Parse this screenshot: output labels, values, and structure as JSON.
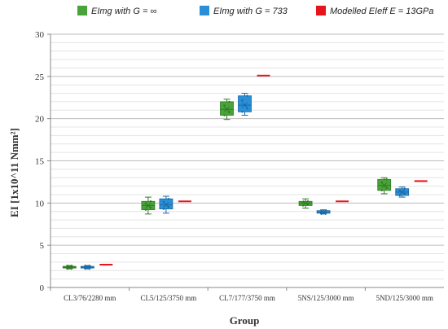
{
  "chart_data": {
    "type": "box",
    "xlabel": "Group",
    "ylabel": "EI [1x10^11 Nmm²]",
    "ylim": [
      0,
      30
    ],
    "yticks": [
      0,
      5,
      10,
      15,
      20,
      25,
      30
    ],
    "grid": "horizontal, every 1 unit",
    "legend_position": "top",
    "categories": [
      "CL3/76/2280 mm",
      "CL5/125/3750 mm",
      "CL7/177/3750 mm",
      "5NS/125/3000 mm",
      "5ND/125/3000 mm"
    ],
    "series": [
      {
        "name": "EImg with G = ∞",
        "color": "#4aa33a",
        "kind": "box",
        "boxes": [
          {
            "min": 2.2,
            "q1": 2.3,
            "median": 2.4,
            "q3": 2.5,
            "max": 2.6
          },
          {
            "min": 8.7,
            "q1": 9.2,
            "median": 9.7,
            "q3": 10.2,
            "max": 10.7
          },
          {
            "min": 19.9,
            "q1": 20.4,
            "median": 21.1,
            "q3": 22.0,
            "max": 22.3
          },
          {
            "min": 9.4,
            "q1": 9.7,
            "median": 10.0,
            "q3": 10.2,
            "max": 10.5
          },
          {
            "min": 11.1,
            "q1": 11.5,
            "median": 12.1,
            "q3": 12.8,
            "max": 13.0
          }
        ]
      },
      {
        "name": "EImg with G = 733",
        "color": "#2a8fd6",
        "kind": "box",
        "boxes": [
          {
            "min": 2.2,
            "q1": 2.3,
            "median": 2.4,
            "q3": 2.5,
            "max": 2.6
          },
          {
            "min": 8.8,
            "q1": 9.3,
            "median": 9.8,
            "q3": 10.5,
            "max": 10.8
          },
          {
            "min": 20.4,
            "q1": 20.8,
            "median": 21.6,
            "q3": 22.7,
            "max": 23.0
          },
          {
            "min": 8.7,
            "q1": 8.8,
            "median": 8.9,
            "q3": 9.1,
            "max": 9.2
          },
          {
            "min": 10.7,
            "q1": 10.9,
            "median": 11.3,
            "q3": 11.7,
            "max": 11.9
          }
        ]
      },
      {
        "name": "Modelled EIeff E = 13GPa",
        "color": "#e8141c",
        "kind": "marker",
        "values": [
          2.7,
          10.2,
          25.1,
          10.2,
          12.6
        ]
      }
    ]
  }
}
